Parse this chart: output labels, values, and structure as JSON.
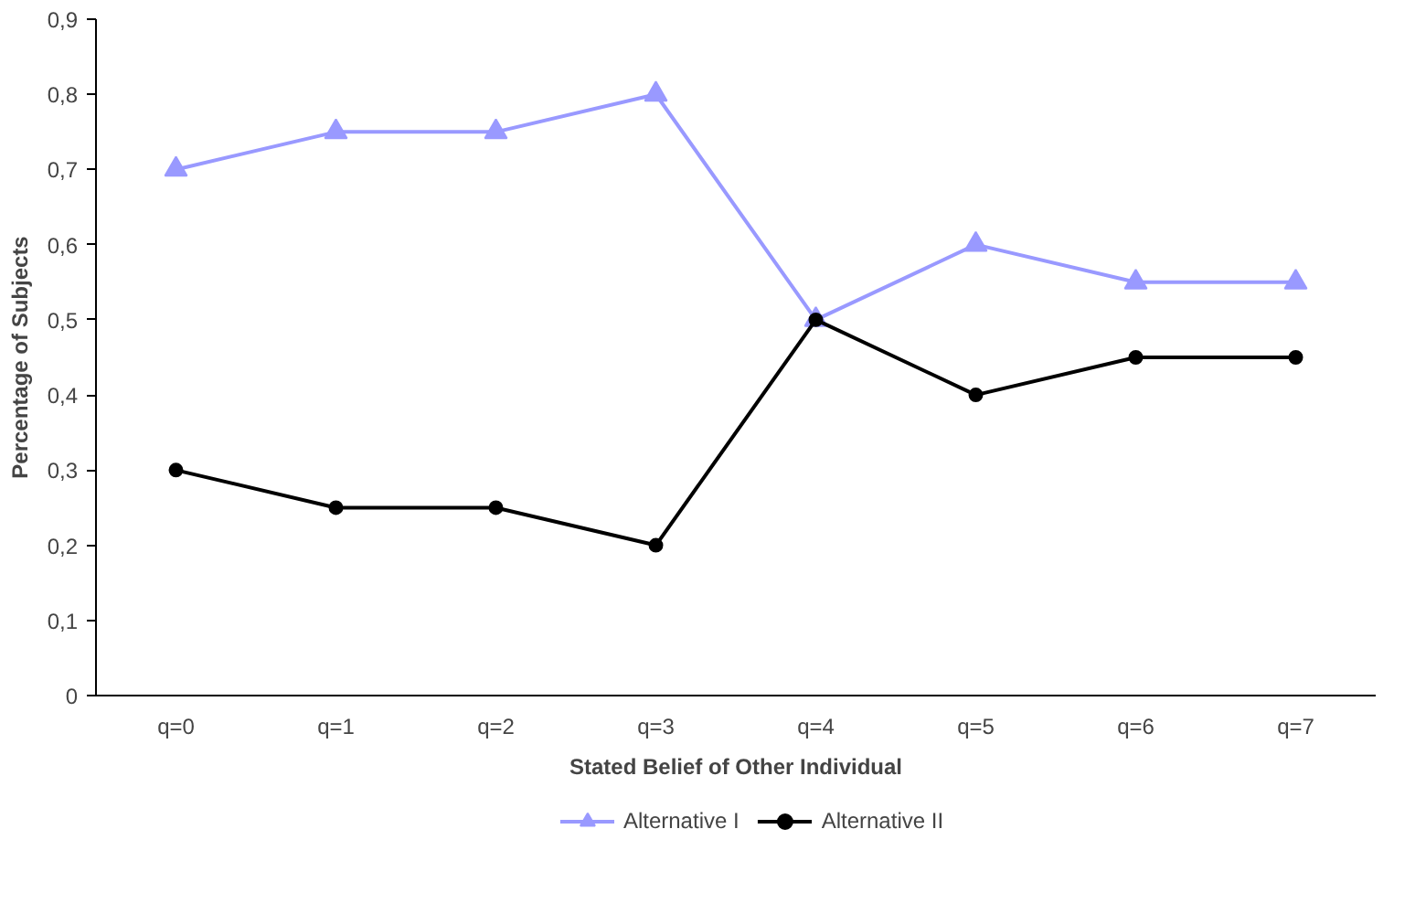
{
  "chart_data": {
    "type": "line",
    "xlabel": "Stated Belief of Other Individual",
    "ylabel": "Percentage of Subjects",
    "categories": [
      "q=0",
      "q=1",
      "q=2",
      "q=3",
      "q=4",
      "q=5",
      "q=6",
      "q=7"
    ],
    "series": [
      {
        "name": "Alternative I",
        "color": "#9999ff",
        "marker": "triangle",
        "values": [
          0.7,
          0.75,
          0.75,
          0.8,
          0.5,
          0.6,
          0.55,
          0.55
        ]
      },
      {
        "name": "Alternative II",
        "color": "#000000",
        "marker": "circle",
        "values": [
          0.3,
          0.25,
          0.25,
          0.2,
          0.5,
          0.4,
          0.45,
          0.45
        ]
      }
    ],
    "ylim": [
      0,
      0.9
    ],
    "yticks": [
      0,
      {
        "value": 0.1,
        "label": "0,1"
      },
      {
        "value": 0.2,
        "label": "0,2"
      },
      {
        "value": 0.3,
        "label": "0,3"
      },
      {
        "value": 0.4,
        "label": "0,4"
      },
      {
        "value": 0.5,
        "label": "0,5"
      },
      {
        "value": 0.6,
        "label": "0,6"
      },
      {
        "value": 0.7,
        "label": "0,7"
      },
      {
        "value": 0.8,
        "label": "0,8"
      },
      {
        "value": 0.9,
        "label": "0,9"
      }
    ],
    "grid": false,
    "legend": "bottom",
    "line_style": "solid"
  }
}
